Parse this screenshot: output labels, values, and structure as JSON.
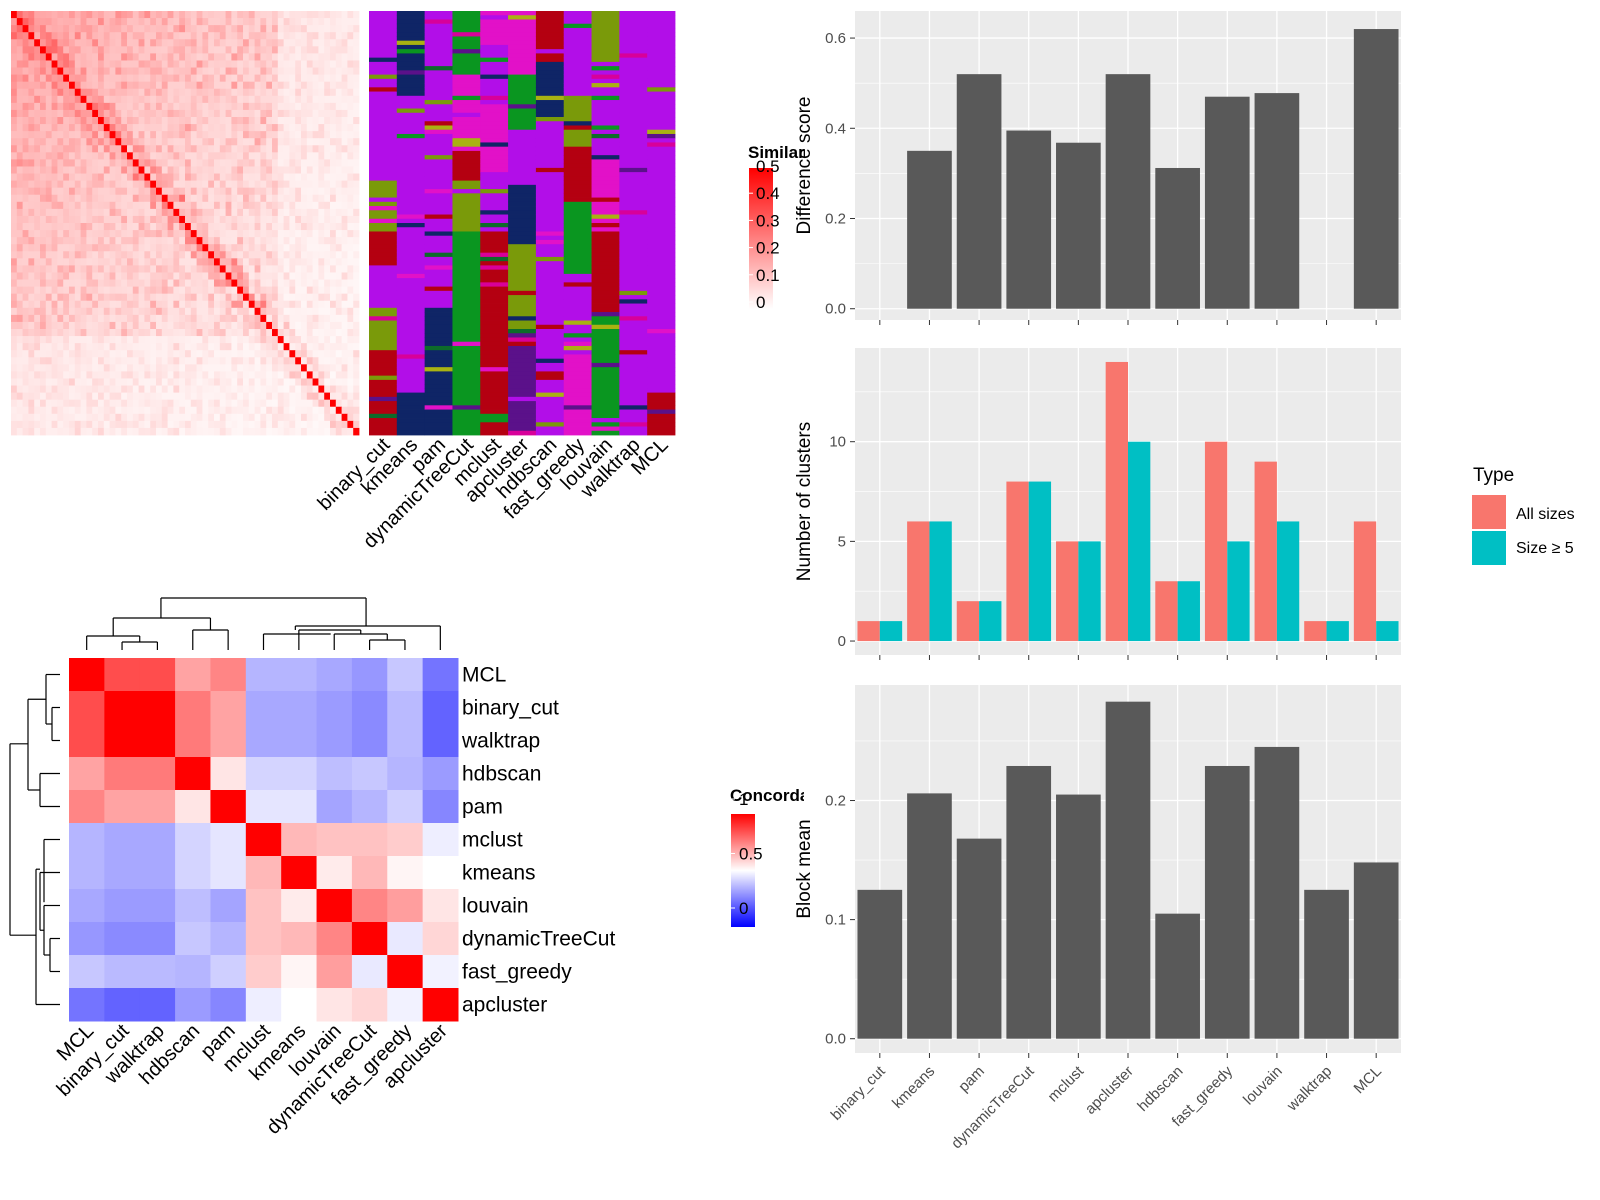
{
  "colors": {
    "panel_bg": "#ebebeb",
    "grid": "#ffffff",
    "bar_dark": "#595959",
    "all_sizes": "#f8766d",
    "size_ge5": "#00bfc4",
    "sim_high": "#ff0000",
    "sim_low": "#ffffff",
    "conc_high": "#ff0000",
    "conc_mid": "#ffffff",
    "conc_low": "#0000ff",
    "cluster_palette": [
      "#b20ee8",
      "#0f2566",
      "#0a9620",
      "#e211c8",
      "#7a9a0a",
      "#b40011",
      "#5b118a",
      "#a9b212",
      "#0d6b2a",
      "#d8009a"
    ]
  },
  "similarity_heatmap": {
    "legend_title": "Similarity",
    "legend_ticks": [
      "0",
      "0.1",
      "0.2",
      "0.3",
      "0.4",
      "0.5"
    ],
    "size": 60,
    "method_labels": [
      "binary_cut",
      "kmeans",
      "pam",
      "dynamicTreeCut",
      "mclust",
      "apcluster",
      "hdbscan",
      "fast_greedy",
      "louvain",
      "walktrap",
      "MCL"
    ]
  },
  "concordance_heatmap": {
    "legend_title": "Concordance",
    "legend_ticks": [
      "0",
      "0.5",
      "1"
    ],
    "row_labels": [
      "MCL",
      "binary_cut",
      "walktrap",
      "hdbscan",
      "pam",
      "mclust",
      "kmeans",
      "louvain",
      "dynamicTreeCut",
      "fast_greedy",
      "apcluster"
    ],
    "col_labels": [
      "MCL",
      "binary_cut",
      "walktrap",
      "hdbscan",
      "pam",
      "mclust",
      "kmeans",
      "louvain",
      "dynamicTreeCut",
      "fast_greedy",
      "apcluster"
    ],
    "matrix": [
      [
        1.0,
        0.85,
        0.85,
        0.68,
        0.74,
        0.33,
        0.33,
        0.3,
        0.26,
        0.37,
        0.18
      ],
      [
        0.85,
        1.0,
        1.0,
        0.76,
        0.68,
        0.3,
        0.3,
        0.27,
        0.23,
        0.34,
        0.14
      ],
      [
        0.85,
        1.0,
        1.0,
        0.76,
        0.68,
        0.3,
        0.3,
        0.27,
        0.23,
        0.34,
        0.14
      ],
      [
        0.68,
        0.76,
        0.76,
        1.0,
        0.55,
        0.4,
        0.4,
        0.35,
        0.37,
        0.33,
        0.27
      ],
      [
        0.74,
        0.68,
        0.68,
        0.55,
        1.0,
        0.44,
        0.44,
        0.29,
        0.33,
        0.39,
        0.22
      ],
      [
        0.33,
        0.3,
        0.3,
        0.4,
        0.44,
        1.0,
        0.64,
        0.62,
        0.62,
        0.6,
        0.46
      ],
      [
        0.33,
        0.3,
        0.3,
        0.4,
        0.44,
        0.64,
        1.0,
        0.54,
        0.64,
        0.52,
        0.5
      ],
      [
        0.3,
        0.27,
        0.27,
        0.35,
        0.29,
        0.62,
        0.54,
        1.0,
        0.74,
        0.69,
        0.55
      ],
      [
        0.26,
        0.23,
        0.23,
        0.37,
        0.33,
        0.62,
        0.64,
        0.74,
        1.0,
        0.45,
        0.58
      ],
      [
        0.37,
        0.34,
        0.34,
        0.33,
        0.39,
        0.6,
        0.52,
        0.69,
        0.45,
        1.0,
        0.47
      ],
      [
        0.18,
        0.14,
        0.14,
        0.27,
        0.22,
        0.46,
        0.5,
        0.55,
        0.58,
        0.47,
        1.0
      ]
    ]
  },
  "chart_data": [
    {
      "type": "bar",
      "categories": [
        "binary_cut",
        "kmeans",
        "pam",
        "dynamicTreeCut",
        "mclust",
        "apcluster",
        "hdbscan",
        "fast_greedy",
        "louvain",
        "walktrap",
        "MCL"
      ],
      "values": [
        0,
        0.35,
        0.52,
        0.395,
        0.368,
        0.52,
        0.312,
        0.47,
        0.478,
        0,
        0.62
      ],
      "ylabel": "Difference score",
      "ylim": [
        -0.025,
        0.66
      ],
      "yticks": [
        0.0,
        0.2,
        0.4,
        0.6
      ],
      "ytick_labels": [
        "0.0",
        "0.2",
        "0.4",
        "0.6"
      ],
      "grid": true
    },
    {
      "type": "bar",
      "categories": [
        "binary_cut",
        "kmeans",
        "pam",
        "dynamicTreeCut",
        "mclust",
        "apcluster",
        "hdbscan",
        "fast_greedy",
        "louvain",
        "walktrap",
        "MCL"
      ],
      "series": [
        {
          "name": "All sizes",
          "values": [
            1,
            6,
            2,
            8,
            5,
            14,
            3,
            10,
            9,
            1,
            6
          ]
        },
        {
          "name": "Size ≥ 5",
          "values": [
            1,
            6,
            2,
            8,
            5,
            10,
            3,
            5,
            6,
            1,
            1
          ]
        }
      ],
      "ylabel": "Number of clusters",
      "ylim": [
        -0.7,
        14.7
      ],
      "yticks": [
        0,
        5,
        10
      ],
      "ytick_labels": [
        "0",
        "5",
        "10"
      ],
      "legend_title": "Type",
      "legend_position": "right",
      "grid": true
    },
    {
      "type": "bar",
      "categories": [
        "binary_cut",
        "kmeans",
        "pam",
        "dynamicTreeCut",
        "mclust",
        "apcluster",
        "hdbscan",
        "fast_greedy",
        "louvain",
        "walktrap",
        "MCL"
      ],
      "values": [
        0.125,
        0.206,
        0.168,
        0.229,
        0.205,
        0.283,
        0.105,
        0.229,
        0.245,
        0.125,
        0.148
      ],
      "ylabel": "Block mean",
      "ylim": [
        -0.012,
        0.297
      ],
      "yticks": [
        0.0,
        0.1,
        0.2
      ],
      "ytick_labels": [
        "0.0",
        "0.1",
        "0.2"
      ],
      "grid": true
    }
  ]
}
